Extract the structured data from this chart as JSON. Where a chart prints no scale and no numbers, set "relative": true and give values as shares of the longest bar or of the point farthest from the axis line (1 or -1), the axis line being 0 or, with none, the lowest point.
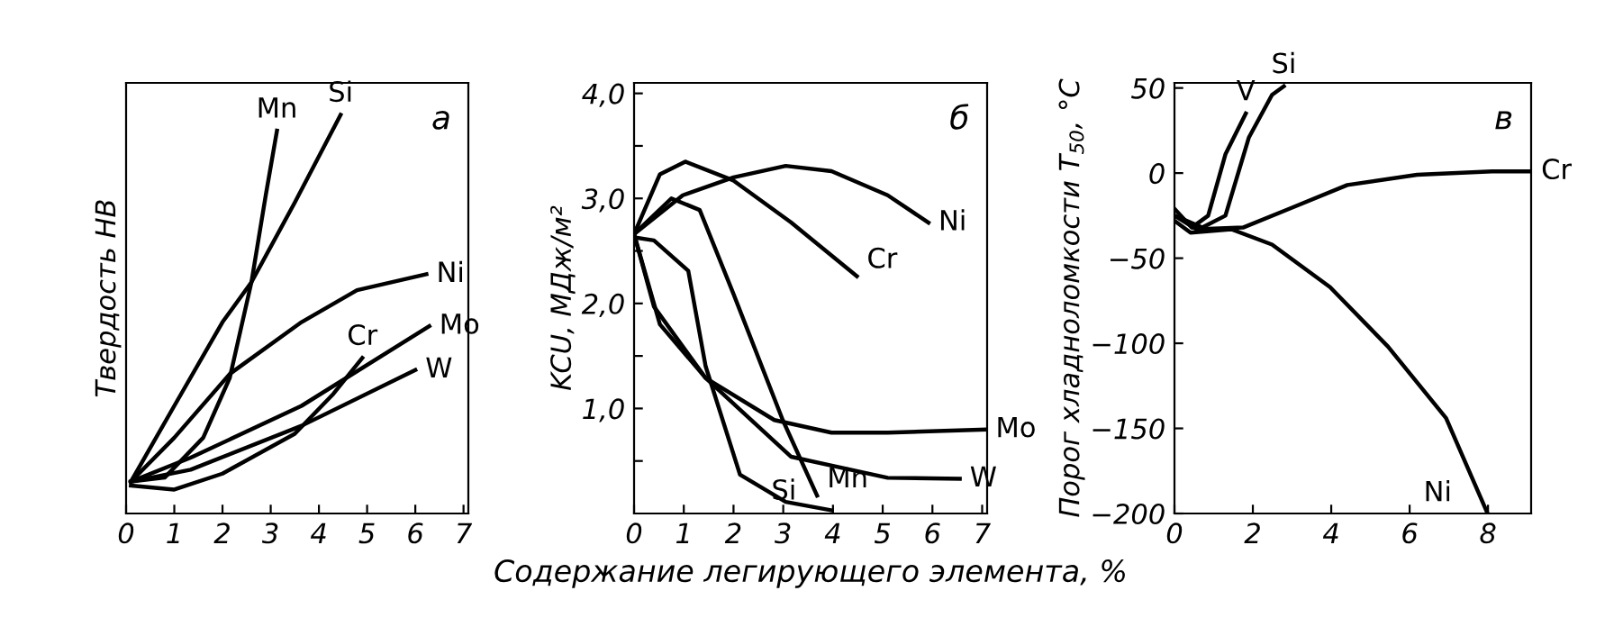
{
  "chart_data": [
    {
      "type": "line",
      "relative": true,
      "tick_labels": "x",
      "ylabel": "Твердость НВ",
      "annotations": [
        "а"
      ],
      "xlim": [
        0,
        7.1
      ],
      "xticks": [
        0,
        1,
        2,
        3,
        4,
        5,
        6,
        7
      ],
      "grid": false,
      "legend": false,
      "series": [
        {
          "name": "Mn",
          "color": "#000000",
          "x": [
            0.1,
            0.8,
            1.6,
            2.15,
            2.6,
            2.9,
            3.13
          ],
          "values": [
            0.08,
            0.09,
            0.19,
            0.34,
            0.58,
            0.8,
            0.96
          ]
        },
        {
          "name": "Si",
          "color": "#000000",
          "x": [
            0.1,
            1.0,
            2.0,
            2.6,
            3.5,
            4.45
          ],
          "values": [
            0.08,
            0.27,
            0.48,
            0.58,
            0.78,
            1.0
          ]
        },
        {
          "name": "Ni",
          "color": "#000000",
          "x": [
            0.1,
            1.0,
            2.15,
            3.64,
            4.79,
            6.23
          ],
          "values": [
            0.08,
            0.19,
            0.35,
            0.48,
            0.56,
            0.6
          ]
        },
        {
          "name": "Mo",
          "color": "#000000",
          "x": [
            0.1,
            1.34,
            3.64,
            6.29
          ],
          "values": [
            0.08,
            0.14,
            0.27,
            0.47
          ]
        },
        {
          "name": "W",
          "color": "#000000",
          "x": [
            0.1,
            1.34,
            3.64,
            6.0
          ],
          "values": [
            0.08,
            0.11,
            0.22,
            0.36
          ]
        },
        {
          "name": "Cr",
          "color": "#000000",
          "x": [
            0.1,
            1.0,
            2.0,
            3.5,
            4.3,
            4.9
          ],
          "values": [
            0.07,
            0.06,
            0.1,
            0.2,
            0.3,
            0.39
          ]
        }
      ]
    },
    {
      "type": "line",
      "ylabel": "KCU, МДж/м²",
      "xlabel": "Содержание легирующего элемента, %",
      "annotations": [
        "б"
      ],
      "xlim": [
        0,
        7.1
      ],
      "xticks": [
        0,
        1,
        2,
        3,
        4,
        5,
        6,
        7
      ],
      "ylim": [
        0,
        4.1
      ],
      "yticks": [
        {
          "value": 0.5,
          "label": null
        },
        {
          "value": 1.0,
          "label": "1,0"
        },
        {
          "value": 1.5,
          "label": null
        },
        {
          "value": 2.0,
          "label": "2,0"
        },
        {
          "value": 2.5,
          "label": null
        },
        {
          "value": 3.0,
          "label": "3,0"
        },
        {
          "value": 3.5,
          "label": null
        },
        {
          "value": 4.0,
          "label": "4,0"
        }
      ],
      "grid": false,
      "legend": false,
      "series": [
        {
          "name": "Ni",
          "color": "#000000",
          "x": [
            0,
            0.98,
            2.0,
            3.05,
            3.97,
            5.1,
            5.92
          ],
          "values": [
            2.66,
            3.03,
            3.2,
            3.31,
            3.26,
            3.03,
            2.77
          ]
        },
        {
          "name": "Cr",
          "color": "#000000",
          "x": [
            0,
            0.52,
            1.03,
            2.0,
            3.16,
            4.48
          ],
          "values": [
            2.66,
            3.23,
            3.35,
            3.17,
            2.77,
            2.26
          ]
        },
        {
          "name": "Mn",
          "color": "#000000",
          "x": [
            0,
            0.75,
            1.32,
            2.0,
            2.99,
            3.68
          ],
          "values": [
            2.66,
            3.0,
            2.89,
            2.09,
            0.89,
            0.17
          ]
        },
        {
          "name": "Mo",
          "color": "#000000",
          "x": [
            0,
            0.52,
            1.44,
            2.82,
            3.97,
            5.1,
            7.07
          ],
          "values": [
            2.66,
            1.8,
            1.29,
            0.89,
            0.77,
            0.77,
            0.8
          ]
        },
        {
          "name": "W",
          "color": "#000000",
          "x": [
            0,
            0.4,
            1.44,
            3.16,
            5.1,
            6.55
          ],
          "values": [
            2.66,
            1.97,
            1.29,
            0.54,
            0.34,
            0.33
          ]
        },
        {
          "name": "Si",
          "color": "#000000",
          "x": [
            0,
            0.4,
            1.09,
            1.44,
            2.13,
            3.05,
            3.97
          ],
          "values": [
            2.63,
            2.6,
            2.31,
            1.4,
            0.37,
            0.11,
            0.03
          ]
        }
      ]
    },
    {
      "type": "line",
      "ylabel": "Порог хладноломкости T$_{50}$, °C",
      "annotations": [
        "в"
      ],
      "xlim": [
        0,
        9.1
      ],
      "xticks": [
        0,
        2,
        4,
        6,
        8
      ],
      "ylim": [
        -200,
        53
      ],
      "yticks": [
        50,
        0,
        -50,
        -100,
        -150,
        -200
      ],
      "grid": false,
      "legend": false,
      "series": [
        {
          "name": "V",
          "color": "#000000",
          "x": [
            0,
            0.44,
            0.86,
            1.3,
            1.82
          ],
          "values": [
            -21,
            -32,
            -25,
            11,
            35
          ]
        },
        {
          "name": "Si",
          "color": "#000000",
          "x": [
            0,
            0.71,
            1.3,
            1.9,
            2.49,
            2.79
          ],
          "values": [
            -25,
            -32,
            -25,
            21,
            46,
            51
          ]
        },
        {
          "name": "Cr",
          "color": "#000000",
          "x": [
            0,
            0.56,
            1.75,
            2.93,
            4.41,
            6.19,
            8.1,
            9.1
          ],
          "values": [
            -25,
            -33,
            -32,
            -21,
            -7,
            -1,
            1,
            1
          ]
        },
        {
          "name": "Ni",
          "color": "#000000",
          "x": [
            0,
            0.41,
            1.45,
            2.49,
            3.97,
            5.45,
            6.93,
            7.97
          ],
          "values": [
            -28,
            -35,
            -33,
            -42,
            -67,
            -102,
            -144,
            -199
          ]
        }
      ]
    }
  ]
}
